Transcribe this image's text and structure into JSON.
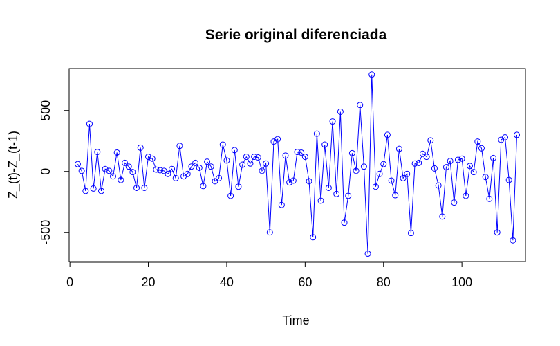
{
  "chart_data": {
    "type": "line",
    "title": "Serie original diferenciada",
    "xlabel": "Time",
    "ylabel": "Z_(t)-Z_(t-1)",
    "xlim": [
      -0.2,
      116.2
    ],
    "ylim": [
      -740,
      845
    ],
    "x_ticks": [
      0,
      20,
      40,
      60,
      80,
      100
    ],
    "y_ticks": [
      -500,
      0,
      500
    ],
    "y_tick_labels": [
      "-500",
      "0",
      "500"
    ],
    "x_tick_labels": [
      "0",
      "20",
      "40",
      "60",
      "80",
      "100"
    ],
    "series_color": "#0000ff",
    "point_style": "open-circle",
    "x": [
      2,
      3,
      4,
      5,
      6,
      7,
      8,
      9,
      10,
      11,
      12,
      13,
      14,
      15,
      16,
      17,
      18,
      19,
      20,
      21,
      22,
      23,
      24,
      25,
      26,
      27,
      28,
      29,
      30,
      31,
      32,
      33,
      34,
      35,
      36,
      37,
      38,
      39,
      40,
      41,
      42,
      43,
      44,
      45,
      46,
      47,
      48,
      49,
      50,
      51,
      52,
      53,
      54,
      55,
      56,
      57,
      58,
      59,
      60,
      61,
      62,
      63,
      64,
      65,
      66,
      67,
      68,
      69,
      70,
      71,
      72,
      73,
      74,
      75,
      76,
      77,
      78,
      79,
      80,
      81,
      82,
      83,
      84,
      85,
      86,
      87,
      88,
      89,
      90,
      91,
      92,
      93,
      94,
      95,
      96,
      97,
      98,
      99,
      100,
      101,
      102,
      103,
      104,
      105,
      106,
      107,
      108,
      109,
      110,
      111,
      112,
      113,
      114
    ],
    "values": [
      60,
      5,
      -160,
      390,
      -140,
      160,
      -160,
      20,
      5,
      -40,
      155,
      -70,
      70,
      40,
      -5,
      -135,
      195,
      -135,
      120,
      105,
      15,
      10,
      5,
      -20,
      20,
      -55,
      210,
      -40,
      -20,
      40,
      70,
      30,
      -120,
      80,
      40,
      -80,
      -55,
      220,
      90,
      -200,
      175,
      -125,
      55,
      120,
      65,
      120,
      115,
      5,
      65,
      -500,
      245,
      265,
      -275,
      130,
      -90,
      -75,
      160,
      155,
      120,
      -80,
      -540,
      310,
      -240,
      220,
      -135,
      410,
      -185,
      490,
      -420,
      -200,
      150,
      5,
      545,
      40,
      -675,
      795,
      -125,
      -20,
      60,
      300,
      -75,
      -195,
      185,
      -55,
      -20,
      -505,
      65,
      70,
      145,
      120,
      255,
      25,
      -115,
      -370,
      35,
      85,
      -255,
      95,
      105,
      -200,
      45,
      -5,
      245,
      190,
      -45,
      -225,
      110,
      -500,
      260,
      280,
      -70,
      -565,
      300
    ]
  }
}
